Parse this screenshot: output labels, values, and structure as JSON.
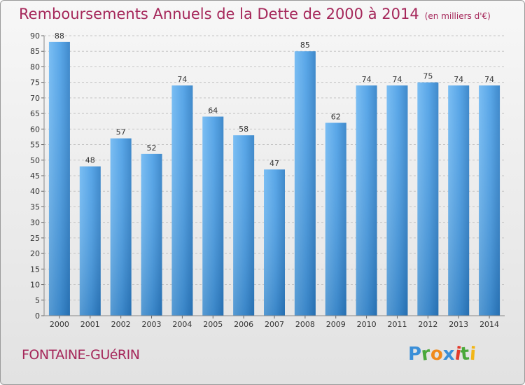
{
  "chart_data": {
    "type": "bar",
    "title": "Remboursements Annuels de la Dette de 2000 à 2014",
    "subtitle": "(en milliers d'€)",
    "categories": [
      "2000",
      "2001",
      "2002",
      "2003",
      "2004",
      "2005",
      "2006",
      "2007",
      "2008",
      "2009",
      "2010",
      "2011",
      "2012",
      "2013",
      "2014"
    ],
    "values": [
      88,
      48,
      57,
      52,
      74,
      64,
      58,
      47,
      85,
      62,
      74,
      74,
      75,
      74,
      74
    ],
    "ylim": [
      0,
      90
    ],
    "yticks": [
      0,
      5,
      10,
      15,
      20,
      25,
      30,
      35,
      40,
      45,
      50,
      55,
      60,
      65,
      70,
      75,
      80,
      85,
      90
    ],
    "grid": true,
    "bar_color": "#3d8ed6"
  },
  "footer": {
    "town": "FONTAINE-GUéRIN",
    "logo_letters": [
      {
        "ch": "P",
        "color": "#3b8fd8"
      },
      {
        "ch": "r",
        "color": "#4aa83a"
      },
      {
        "ch": "o",
        "color": "#f08a1c"
      },
      {
        "ch": "x",
        "color": "#3b8fd8"
      },
      {
        "ch": "i",
        "color": "#e33a2b"
      },
      {
        "ch": "t",
        "color": "#4aa83a"
      },
      {
        "ch": "i",
        "color": "#f2b617"
      }
    ]
  }
}
